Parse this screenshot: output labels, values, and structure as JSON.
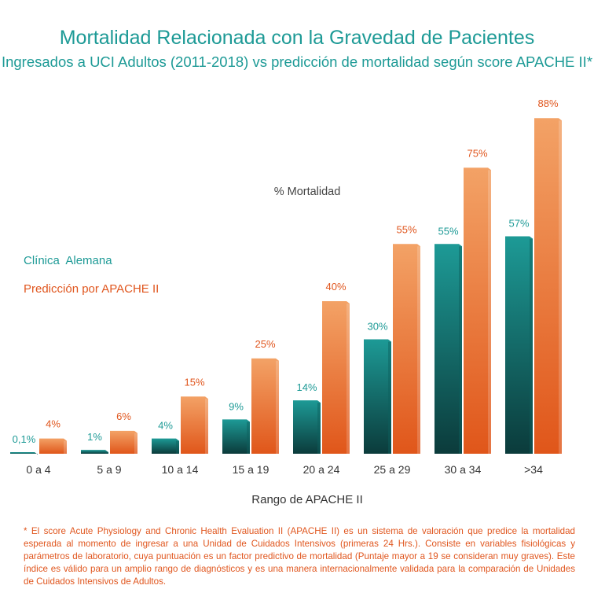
{
  "title": "Mortalidad Relacionada con la Gravedad de Pacientes",
  "subtitle": "Ingresados a UCI Adultos (2011-2018) vs predicción de mortalidad según score APACHE II*",
  "footnote": "* El score Acute Physiology and Chronic Health Evaluation II (APACHE II) es un sistema de valoración que predice la mortalidad esperada al momento de ingresar a una Unidad de Cuidados Intensivos (primeras 24 Hrs.). Consiste en variables fisiológicas y parámetros de laboratorio, cuya puntuación es un factor predictivo de mortalidad (Puntaje mayor a 19 se consideran muy graves). Este índice es válido para un amplio rango de diagnósticos y es una manera internacionalmente validada para la comparación de Unidades de Cuidados Intensivos de Adultos.",
  "colors": {
    "teal": "#1d9a96",
    "teal_dark": "#0a3a3a",
    "orange": "#f39a5a",
    "orange_dark": "#e05a18",
    "label_teal": "#1d9a96",
    "label_orange": "#e0561e",
    "axis_text": "#333333"
  },
  "chart_data": {
    "type": "bar",
    "ylabel": "% Mortalidad",
    "xlabel": "Rango de APACHE II",
    "ylim": [
      0,
      90
    ],
    "legend_placement": "left",
    "categories": [
      "0 a 4",
      "5 a 9",
      "10 a 14",
      "15 a 19",
      "20 a 24",
      "25 a 29",
      "30 a 34",
      ">34"
    ],
    "series": [
      {
        "name": "Clínica  Alemana",
        "values": [
          0.1,
          1,
          4,
          9,
          14,
          30,
          55,
          57
        ],
        "labels": [
          "0,1%",
          "1%",
          "4%",
          "9%",
          "14%",
          "30%",
          "55%",
          "57%"
        ]
      },
      {
        "name": "Predicción por APACHE II",
        "values": [
          4,
          6,
          15,
          25,
          40,
          55,
          75,
          88
        ],
        "labels": [
          "4%",
          "6%",
          "15%",
          "25%",
          "40%",
          "55%",
          "75%",
          "88%"
        ]
      }
    ]
  }
}
